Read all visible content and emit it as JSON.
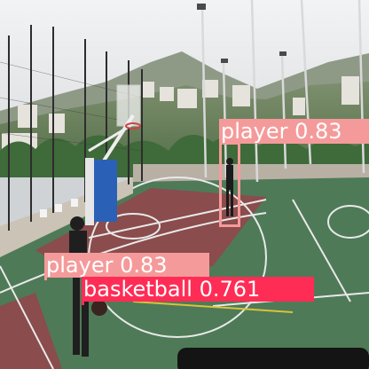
{
  "detections": [
    {
      "label": "player 0.83",
      "color": "#f59a9a",
      "text_color": "#ffffff"
    },
    {
      "label": "player 0.83",
      "color": "#f59a9a",
      "text_color": "#ffffff"
    },
    {
      "label": "basketball 0.761",
      "color": "#ff2d55",
      "text_color": "#ffffff"
    }
  ]
}
